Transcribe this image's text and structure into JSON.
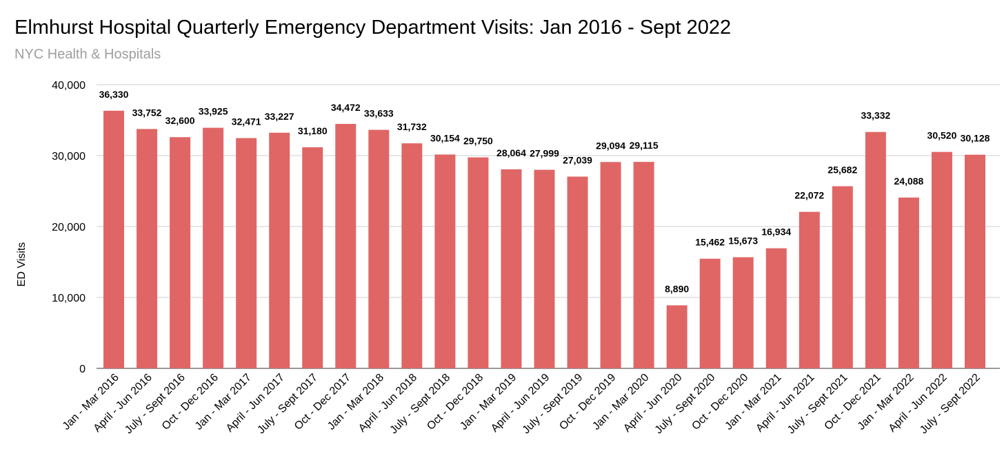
{
  "chart_data": {
    "type": "bar",
    "title": "Elmhurst Hospital Quarterly Emergency Department Visits: Jan 2016 - Sept 2022",
    "subtitle": "NYC Health & Hospitals",
    "xlabel": "",
    "ylabel": "ED Visits",
    "ylim": [
      0,
      40000
    ],
    "yticks": [
      0,
      10000,
      20000,
      30000,
      40000
    ],
    "ytick_labels": [
      "0",
      "10,000",
      "20,000",
      "30,000",
      "40,000"
    ],
    "grid": true,
    "legend": "none",
    "bar_color": "#e06666",
    "categories": [
      "Jan - Mar 2016",
      "April - Jun 2016",
      "July - Sept 2016",
      "Oct - Dec 2016",
      "Jan - Mar 2017",
      "April - Jun 2017",
      "July - Sept 2017",
      "Oct - Dec 2017",
      "Jan - Mar 2018",
      "April - Jun 2018",
      "July - Sept 2018",
      "Oct - Dec 2018",
      "Jan - Mar 2019",
      "April - Jun 2019",
      "July - Sept 2019",
      "Oct - Dec 2019",
      "Jan - Mar 2020",
      "April - Jun 2020",
      "July - Sept 2020",
      "Oct - Dec 2020",
      "Jan - Mar 2021",
      "April - Jun 2021",
      "July - Sept 2021",
      "Oct - Dec 2021",
      "Jan - Mar 2022",
      "April - Jun 2022",
      "July - Sept 2022"
    ],
    "values": [
      36330,
      33752,
      32600,
      33925,
      32471,
      33227,
      31180,
      34472,
      33633,
      31732,
      30154,
      29750,
      28064,
      27999,
      27039,
      29094,
      29115,
      8890,
      15462,
      15673,
      16934,
      22072,
      25682,
      33332,
      24088,
      30520,
      30128
    ],
    "value_labels": [
      "36,330",
      "33,752",
      "32,600",
      "33,925",
      "32,471",
      "33,227",
      "31,180",
      "34,472",
      "33,633",
      "31,732",
      "30,154",
      "29,750",
      "28,064",
      "27,999",
      "27,039",
      "29,094",
      "29,115",
      "8,890",
      "15,462",
      "15,673",
      "16,934",
      "22,072",
      "25,682",
      "33,332",
      "24,088",
      "30,520",
      "30,128"
    ]
  }
}
